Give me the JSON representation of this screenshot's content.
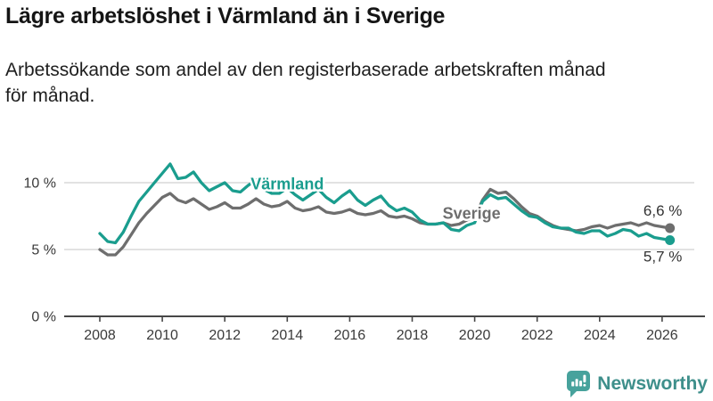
{
  "header": {
    "title": "Lägre arbetslöshet i Värmland än i Sverige",
    "subtitle": "Arbetssökande som andel av den registerbaserade arbetskraften månad för månad."
  },
  "colors": {
    "varmland_teal": "#1a9d8e",
    "sverige_gray": "#6e6e6e",
    "gridline": "#d9d9d9",
    "axis_line": "#474747",
    "axis_text": "#3a3a3a",
    "end_label_text": "#333333",
    "brand_teal": "#3e8f8b",
    "logo_bubble_teal": "#47a29c"
  },
  "chart_data": {
    "type": "line",
    "title": "Lägre arbetslöshet i Värmland än i Sverige",
    "subtitle": "Arbetssökande som andel av den registerbaserade arbetskraften månad för månad.",
    "x_unit": "year",
    "x_start": 2008.0,
    "x_step": 0.25,
    "xlim": [
      2008,
      2026.4
    ],
    "ylim": [
      0,
      11.8
    ],
    "grid": "horizontal-only",
    "legend_position": "inline-labels",
    "yticks": [
      {
        "value": 0,
        "label": "0 %"
      },
      {
        "value": 5,
        "label": "5 %"
      },
      {
        "value": 10,
        "label": "10 %"
      }
    ],
    "xticks": [
      {
        "value": 2008,
        "label": "2008"
      },
      {
        "value": 2010,
        "label": "2010"
      },
      {
        "value": 2012,
        "label": "2012"
      },
      {
        "value": 2014,
        "label": "2014"
      },
      {
        "value": 2016,
        "label": "2016"
      },
      {
        "value": 2018,
        "label": "2018"
      },
      {
        "value": 2020,
        "label": "2020"
      },
      {
        "value": 2022,
        "label": "2022"
      },
      {
        "value": 2024,
        "label": "2024"
      },
      {
        "value": 2026,
        "label": "2026"
      }
    ],
    "series": [
      {
        "name": "Sverige",
        "slug": "sverige",
        "color": "#6e6e6e",
        "label_anchor": {
          "x": 2019.9,
          "y": 7.7
        },
        "end_label": "6,6 %",
        "end_value": 6.6,
        "end_label_side": "above",
        "values": [
          5.0,
          4.6,
          4.6,
          5.2,
          6.1,
          7.0,
          7.7,
          8.3,
          8.9,
          9.2,
          8.7,
          8.5,
          8.8,
          8.4,
          8.0,
          8.2,
          8.5,
          8.1,
          8.1,
          8.4,
          8.8,
          8.4,
          8.2,
          8.3,
          8.6,
          8.1,
          7.9,
          8.0,
          8.2,
          7.8,
          7.7,
          7.8,
          8.0,
          7.7,
          7.6,
          7.7,
          7.9,
          7.5,
          7.4,
          7.5,
          7.3,
          7.0,
          6.9,
          6.9,
          7.0,
          6.8,
          6.9,
          7.2,
          7.4,
          8.7,
          9.5,
          9.2,
          9.3,
          8.8,
          8.2,
          7.7,
          7.5,
          7.1,
          6.8,
          6.6,
          6.5,
          6.4,
          6.5,
          6.7,
          6.8,
          6.6,
          6.8,
          6.9,
          7.0,
          6.8,
          7.0,
          6.8,
          6.7,
          6.6
        ]
      },
      {
        "name": "Värmland",
        "slug": "varmland",
        "color": "#1a9d8e",
        "label_anchor": {
          "x": 2014.0,
          "y": 9.9
        },
        "end_label": "5,7 %",
        "end_value": 5.7,
        "end_label_side": "below",
        "values": [
          6.2,
          5.6,
          5.5,
          6.3,
          7.5,
          8.6,
          9.3,
          10.0,
          10.7,
          11.4,
          10.3,
          10.4,
          10.8,
          10.0,
          9.4,
          9.7,
          10.0,
          9.4,
          9.3,
          9.8,
          10.2,
          9.5,
          9.2,
          9.2,
          9.6,
          9.1,
          8.7,
          9.1,
          9.5,
          8.9,
          8.5,
          9.0,
          9.4,
          8.7,
          8.3,
          8.7,
          9.0,
          8.3,
          7.9,
          8.1,
          7.8,
          7.2,
          6.9,
          6.9,
          7.0,
          6.5,
          6.4,
          6.8,
          7.0,
          8.6,
          9.1,
          8.8,
          8.9,
          8.4,
          7.9,
          7.5,
          7.4,
          7.0,
          6.7,
          6.6,
          6.6,
          6.3,
          6.2,
          6.4,
          6.4,
          6.0,
          6.2,
          6.5,
          6.4,
          6.0,
          6.2,
          5.9,
          5.8,
          5.7
        ]
      }
    ]
  },
  "footer": {
    "brand": "Newsworthy",
    "logo_icon": "bar-chart-speech-bubble-icon"
  }
}
